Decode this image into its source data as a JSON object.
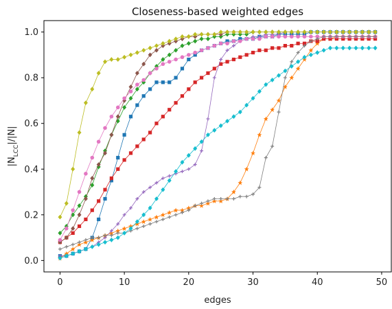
{
  "chart_data": {
    "type": "line",
    "title": "Closeness-based weighted edges",
    "xlabel": "edges",
    "ylabel": "|N_LCC|/|N|",
    "xlim": [
      -2.5,
      51.5
    ],
    "ylim": [
      -0.05,
      1.05
    ],
    "xticks": [
      0,
      10,
      20,
      30,
      40,
      50
    ],
    "yticks": [
      0.0,
      0.2,
      0.4,
      0.6,
      0.8,
      1.0
    ],
    "grid": false,
    "legend": "none",
    "series": [
      {
        "color": "#1f77b4",
        "marker": "square",
        "values": [
          0.02,
          0.02,
          0.03,
          0.04,
          0.05,
          0.1,
          0.18,
          0.27,
          0.35,
          0.45,
          0.55,
          0.63,
          0.68,
          0.72,
          0.75,
          0.78,
          0.78,
          0.78,
          0.8,
          0.84,
          0.88,
          0.9,
          0.92,
          0.93,
          0.94,
          0.95,
          0.96,
          0.96,
          0.97,
          0.97,
          0.97,
          0.98,
          0.98,
          0.98,
          0.99,
          0.99,
          0.99,
          0.99,
          0.99,
          1.0,
          1.0,
          1.0,
          1.0,
          1.0,
          1.0,
          1.0,
          1.0,
          1.0,
          1.0,
          1.0
        ]
      },
      {
        "color": "#ff7f0e",
        "marker": "star",
        "values": [
          0.01,
          0.03,
          0.05,
          0.07,
          0.08,
          0.09,
          0.1,
          0.11,
          0.12,
          0.13,
          0.14,
          0.15,
          0.16,
          0.17,
          0.18,
          0.19,
          0.2,
          0.21,
          0.22,
          0.22,
          0.23,
          0.24,
          0.24,
          0.25,
          0.26,
          0.26,
          0.27,
          0.3,
          0.34,
          0.4,
          0.47,
          0.55,
          0.62,
          0.66,
          0.7,
          0.76,
          0.8,
          0.84,
          0.88,
          0.92,
          0.95,
          0.97,
          0.97,
          0.98,
          0.98,
          0.98,
          0.98,
          0.98,
          0.98,
          0.98
        ]
      },
      {
        "color": "#2ca02c",
        "marker": "diamond",
        "values": [
          0.12,
          0.15,
          0.2,
          0.24,
          0.28,
          0.33,
          0.41,
          0.48,
          0.55,
          0.61,
          0.67,
          0.71,
          0.75,
          0.78,
          0.82,
          0.85,
          0.88,
          0.9,
          0.92,
          0.94,
          0.95,
          0.96,
          0.97,
          0.97,
          0.98,
          0.98,
          0.99,
          0.99,
          0.99,
          0.99,
          1.0,
          1.0,
          1.0,
          1.0,
          1.0,
          1.0,
          1.0,
          1.0,
          1.0,
          1.0,
          1.0,
          1.0,
          1.0,
          1.0,
          1.0,
          1.0,
          1.0,
          1.0,
          1.0,
          1.0
        ]
      },
      {
        "color": "#d62728",
        "marker": "square",
        "values": [
          0.08,
          0.1,
          0.12,
          0.15,
          0.18,
          0.22,
          0.26,
          0.31,
          0.36,
          0.4,
          0.44,
          0.47,
          0.5,
          0.53,
          0.56,
          0.6,
          0.63,
          0.66,
          0.69,
          0.72,
          0.75,
          0.78,
          0.8,
          0.82,
          0.84,
          0.86,
          0.87,
          0.88,
          0.89,
          0.9,
          0.91,
          0.92,
          0.92,
          0.93,
          0.93,
          0.94,
          0.94,
          0.95,
          0.95,
          0.96,
          0.96,
          0.97,
          0.97,
          0.97,
          0.97,
          0.97,
          0.97,
          0.97,
          0.97,
          0.97
        ]
      },
      {
        "color": "#9467bd",
        "marker": "plus",
        "values": [
          0.02,
          0.02,
          0.03,
          0.04,
          0.05,
          0.06,
          0.08,
          0.1,
          0.13,
          0.16,
          0.2,
          0.23,
          0.27,
          0.3,
          0.32,
          0.34,
          0.36,
          0.37,
          0.38,
          0.39,
          0.4,
          0.42,
          0.48,
          0.62,
          0.8,
          0.88,
          0.92,
          0.94,
          0.96,
          0.97,
          0.98,
          0.98,
          0.99,
          0.99,
          0.99,
          1.0,
          1.0,
          1.0,
          1.0,
          1.0,
          1.0,
          1.0,
          1.0,
          1.0,
          1.0,
          1.0,
          1.0,
          1.0,
          1.0,
          1.0
        ]
      },
      {
        "color": "#8c564b",
        "marker": "diamond",
        "values": [
          0.08,
          0.1,
          0.14,
          0.2,
          0.27,
          0.36,
          0.42,
          0.47,
          0.55,
          0.63,
          0.7,
          0.76,
          0.82,
          0.86,
          0.9,
          0.92,
          0.94,
          0.95,
          0.96,
          0.97,
          0.98,
          0.98,
          0.99,
          0.99,
          0.99,
          0.99,
          1.0,
          1.0,
          1.0,
          1.0,
          1.0,
          1.0,
          1.0,
          1.0,
          1.0,
          1.0,
          1.0,
          1.0,
          1.0,
          1.0,
          1.0,
          1.0,
          1.0,
          1.0,
          1.0,
          1.0,
          1.0,
          1.0,
          1.0,
          1.0
        ]
      },
      {
        "color": "#e377c2",
        "marker": "circle",
        "values": [
          0.09,
          0.14,
          0.22,
          0.3,
          0.38,
          0.45,
          0.52,
          0.58,
          0.63,
          0.67,
          0.71,
          0.74,
          0.77,
          0.79,
          0.82,
          0.84,
          0.86,
          0.87,
          0.88,
          0.89,
          0.9,
          0.91,
          0.92,
          0.93,
          0.94,
          0.95,
          0.95,
          0.96,
          0.96,
          0.97,
          0.97,
          0.97,
          0.98,
          0.98,
          0.98,
          0.98,
          0.98,
          0.98,
          0.98,
          0.98,
          0.98,
          0.98,
          0.98,
          0.98,
          0.98,
          0.98,
          0.98,
          0.98,
          0.98,
          0.98
        ]
      },
      {
        "color": "#7f7f7f",
        "marker": "plus",
        "values": [
          0.05,
          0.06,
          0.07,
          0.08,
          0.09,
          0.1,
          0.1,
          0.11,
          0.11,
          0.12,
          0.12,
          0.13,
          0.14,
          0.15,
          0.16,
          0.17,
          0.18,
          0.19,
          0.2,
          0.21,
          0.22,
          0.24,
          0.25,
          0.26,
          0.27,
          0.27,
          0.27,
          0.27,
          0.28,
          0.28,
          0.29,
          0.32,
          0.45,
          0.5,
          0.65,
          0.8,
          0.87,
          0.91,
          0.94,
          0.96,
          0.97,
          0.98,
          0.98,
          0.98,
          0.98,
          0.98,
          0.98,
          0.98,
          0.98,
          0.98
        ]
      },
      {
        "color": "#bcbd22",
        "marker": "diamond",
        "values": [
          0.19,
          0.25,
          0.4,
          0.56,
          0.69,
          0.75,
          0.82,
          0.87,
          0.88,
          0.88,
          0.89,
          0.9,
          0.91,
          0.92,
          0.93,
          0.94,
          0.95,
          0.96,
          0.97,
          0.98,
          0.98,
          0.99,
          0.99,
          0.99,
          0.99,
          1.0,
          1.0,
          1.0,
          1.0,
          1.0,
          1.0,
          1.0,
          1.0,
          1.0,
          1.0,
          1.0,
          1.0,
          1.0,
          1.0,
          1.0,
          1.0,
          1.0,
          1.0,
          1.0,
          1.0,
          1.0,
          1.0,
          1.0,
          1.0,
          1.0
        ]
      },
      {
        "color": "#17becf",
        "marker": "diamond",
        "values": [
          0.01,
          0.02,
          0.03,
          0.04,
          0.05,
          0.06,
          0.07,
          0.08,
          0.09,
          0.1,
          0.12,
          0.14,
          0.17,
          0.2,
          0.23,
          0.27,
          0.31,
          0.35,
          0.39,
          0.43,
          0.46,
          0.49,
          0.52,
          0.55,
          0.57,
          0.59,
          0.61,
          0.63,
          0.65,
          0.68,
          0.71,
          0.74,
          0.77,
          0.79,
          0.81,
          0.83,
          0.85,
          0.87,
          0.89,
          0.9,
          0.91,
          0.92,
          0.93,
          0.93,
          0.93,
          0.93,
          0.93,
          0.93,
          0.93,
          0.93
        ]
      }
    ]
  }
}
